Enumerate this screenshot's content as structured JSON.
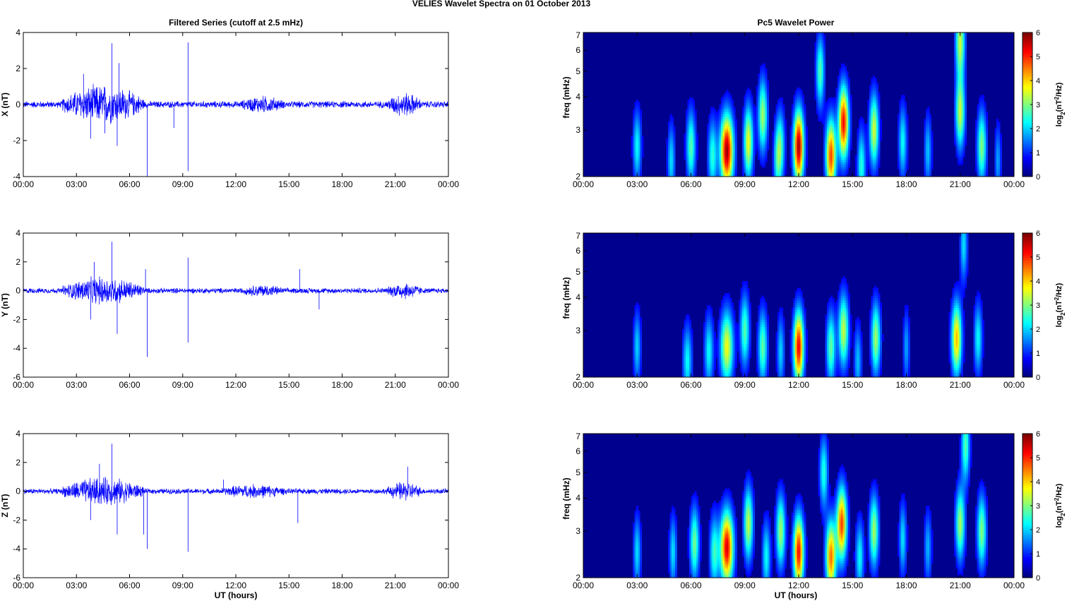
{
  "figure": {
    "title": "VELIES Wavelet Spectra on 01 October   2013",
    "left_title": "Filtered Series (cutoff at 2.5 mHz)",
    "right_title": "Pc5 Wavelet Power",
    "xlabel": "UT (hours)",
    "freq_label": "freq (mHz)",
    "colorbar_label": "log",
    "colorbar_label_sub": "2",
    "colorbar_label_rest": "(nT",
    "colorbar_label_sup": "2",
    "colorbar_label_end": "/Hz)"
  },
  "colors": {
    "series_line": "#0000ff",
    "heatmap_bg": "#00008f"
  },
  "colormap": "jet",
  "chart_data": [
    {
      "type": "line",
      "ylabel": "X (nT)",
      "x_ticks": [
        "00:00",
        "03:00",
        "06:00",
        "09:00",
        "12:00",
        "15:00",
        "18:00",
        "21:00",
        "00:00"
      ],
      "xlim_hours": [
        0,
        24
      ],
      "ylim": [
        -4,
        4
      ],
      "y_ticks": [
        "4",
        "2",
        "0",
        "-2",
        "-4"
      ],
      "baseline_amplitude": 0.15,
      "activity": [
        {
          "start": 2.2,
          "end": 6.8,
          "amp": 0.9
        },
        {
          "start": 20.5,
          "end": 22.5,
          "amp": 0.55
        },
        {
          "start": 12.2,
          "end": 14.8,
          "amp": 0.4
        }
      ],
      "spikes": [
        [
          5.0,
          3.4
        ],
        [
          5.4,
          2.3
        ],
        [
          9.3,
          3.45
        ],
        [
          9.3,
          -3.7
        ],
        [
          7.0,
          -4.0
        ],
        [
          5.3,
          -2.3
        ],
        [
          3.8,
          -1.9
        ],
        [
          3.4,
          1.7
        ],
        [
          8.5,
          -1.3
        ],
        [
          4.6,
          -1.6
        ]
      ]
    },
    {
      "type": "line",
      "ylabel": "Y (nT)",
      "x_ticks": [
        "00:00",
        "03:00",
        "06:00",
        "09:00",
        "12:00",
        "15:00",
        "18:00",
        "21:00",
        "00:00"
      ],
      "xlim_hours": [
        0,
        24
      ],
      "ylim": [
        -6,
        4
      ],
      "y_ticks": [
        "4",
        "2",
        "0",
        "-2",
        "-4",
        "-6"
      ],
      "baseline_amplitude": 0.15,
      "activity": [
        {
          "start": 2.2,
          "end": 6.8,
          "amp": 0.8
        },
        {
          "start": 20.5,
          "end": 22.5,
          "amp": 0.5
        },
        {
          "start": 12.2,
          "end": 14.8,
          "amp": 0.35
        }
      ],
      "spikes": [
        [
          5.0,
          3.4
        ],
        [
          7.0,
          -4.6
        ],
        [
          9.3,
          2.3
        ],
        [
          9.3,
          -3.6
        ],
        [
          5.3,
          -3.0
        ],
        [
          3.8,
          -2.0
        ],
        [
          4.0,
          2.0
        ],
        [
          6.9,
          1.5
        ],
        [
          15.6,
          1.5
        ],
        [
          16.7,
          -1.3
        ]
      ]
    },
    {
      "type": "line",
      "ylabel": "Z (nT)",
      "x_ticks": [
        "00:00",
        "03:00",
        "06:00",
        "09:00",
        "12:00",
        "15:00",
        "18:00",
        "21:00",
        "00:00"
      ],
      "xlim_hours": [
        0,
        24
      ],
      "ylim": [
        -6,
        4
      ],
      "y_ticks": [
        "4",
        "2",
        "0",
        "-2",
        "-4",
        "-6"
      ],
      "baseline_amplitude": 0.15,
      "activity": [
        {
          "start": 2.2,
          "end": 6.8,
          "amp": 0.8
        },
        {
          "start": 20.5,
          "end": 22.5,
          "amp": 0.55
        },
        {
          "start": 11.0,
          "end": 15.0,
          "amp": 0.4
        }
      ],
      "spikes": [
        [
          5.0,
          3.3
        ],
        [
          7.0,
          -4.0
        ],
        [
          9.3,
          -4.2
        ],
        [
          5.3,
          -3.0
        ],
        [
          6.8,
          -3.0
        ],
        [
          3.8,
          -2.0
        ],
        [
          15.5,
          -2.2
        ],
        [
          4.3,
          1.9
        ],
        [
          21.7,
          1.7
        ],
        [
          11.3,
          0.8
        ]
      ]
    },
    {
      "type": "heatmap",
      "ylabel": "freq (mHz)",
      "x_ticks": [
        "00:00",
        "03:00",
        "06:00",
        "09:00",
        "12:00",
        "15:00",
        "18:00",
        "21:00",
        "00:00"
      ],
      "xlim_hours": [
        0,
        24
      ],
      "y_scale": "log",
      "ylim": [
        2,
        7
      ],
      "y_ticks": [
        "7",
        "6",
        "5",
        "4",
        "3",
        "2"
      ],
      "colorbar": {
        "range": [
          0,
          6
        ],
        "ticks": [
          "6",
          "5",
          "4",
          "3",
          "2",
          "1",
          "0"
        ]
      },
      "blobs": [
        {
          "t": 8.0,
          "f": 2.5,
          "p": 5.8,
          "w": 0.28
        },
        {
          "t": 12.0,
          "f": 2.6,
          "p": 5.8,
          "w": 0.22
        },
        {
          "t": 14.5,
          "f": 3.2,
          "p": 5.2,
          "w": 0.22
        },
        {
          "t": 13.8,
          "f": 2.4,
          "p": 4.8,
          "w": 0.22
        },
        {
          "t": 9.2,
          "f": 2.7,
          "p": 3.5,
          "w": 0.2
        },
        {
          "t": 10.0,
          "f": 3.4,
          "p": 3.0,
          "w": 0.2
        },
        {
          "t": 16.2,
          "f": 3.0,
          "p": 3.3,
          "w": 0.2
        },
        {
          "t": 6.0,
          "f": 2.6,
          "p": 2.5,
          "w": 0.2
        },
        {
          "t": 7.2,
          "f": 2.4,
          "p": 2.2,
          "w": 0.2
        },
        {
          "t": 11.0,
          "f": 2.6,
          "p": 2.2,
          "w": 0.18
        },
        {
          "t": 21.0,
          "f": 3.5,
          "p": 3.2,
          "w": 0.2
        },
        {
          "t": 22.2,
          "f": 2.6,
          "p": 2.8,
          "w": 0.2
        },
        {
          "t": 3.0,
          "f": 2.6,
          "p": 2.0,
          "w": 0.18
        },
        {
          "t": 4.9,
          "f": 2.3,
          "p": 1.8,
          "w": 0.16
        },
        {
          "t": 17.8,
          "f": 2.7,
          "p": 2.0,
          "w": 0.18
        },
        {
          "t": 19.2,
          "f": 2.5,
          "p": 1.6,
          "w": 0.16
        },
        {
          "t": 15.5,
          "f": 2.2,
          "p": 2.2,
          "w": 0.18
        },
        {
          "t": 13.2,
          "f": 5.0,
          "p": 2.5,
          "w": 0.18
        },
        {
          "t": 21.0,
          "f": 6.5,
          "p": 3.2,
          "w": 0.2
        },
        {
          "t": 10.8,
          "f": 2.3,
          "p": 1.8,
          "w": 0.16
        },
        {
          "t": 23.1,
          "f": 2.3,
          "p": 1.4,
          "w": 0.14
        }
      ]
    },
    {
      "type": "heatmap",
      "ylabel": "freq (mHz)",
      "x_ticks": [
        "00:00",
        "03:00",
        "06:00",
        "09:00",
        "12:00",
        "15:00",
        "18:00",
        "21:00",
        "00:00"
      ],
      "xlim_hours": [
        0,
        24
      ],
      "y_scale": "log",
      "ylim": [
        2,
        7
      ],
      "y_ticks": [
        "7",
        "6",
        "5",
        "4",
        "3",
        "2"
      ],
      "colorbar": {
        "range": [
          0,
          6
        ],
        "ticks": [
          "6",
          "5",
          "4",
          "3",
          "2",
          "1",
          "0"
        ]
      },
      "blobs": [
        {
          "t": 12.0,
          "f": 2.6,
          "p": 5.3,
          "w": 0.22
        },
        {
          "t": 8.0,
          "f": 2.6,
          "p": 3.5,
          "w": 0.28
        },
        {
          "t": 20.8,
          "f": 2.8,
          "p": 4.0,
          "w": 0.22
        },
        {
          "t": 14.5,
          "f": 3.0,
          "p": 3.2,
          "w": 0.22
        },
        {
          "t": 16.3,
          "f": 2.8,
          "p": 3.0,
          "w": 0.2
        },
        {
          "t": 13.8,
          "f": 2.6,
          "p": 2.6,
          "w": 0.2
        },
        {
          "t": 9.0,
          "f": 3.0,
          "p": 2.5,
          "w": 0.2
        },
        {
          "t": 10.0,
          "f": 2.6,
          "p": 2.6,
          "w": 0.2
        },
        {
          "t": 5.8,
          "f": 2.3,
          "p": 2.0,
          "w": 0.2
        },
        {
          "t": 7.0,
          "f": 2.5,
          "p": 2.0,
          "w": 0.2
        },
        {
          "t": 22.0,
          "f": 2.8,
          "p": 2.0,
          "w": 0.18
        },
        {
          "t": 3.0,
          "f": 2.6,
          "p": 1.7,
          "w": 0.16
        },
        {
          "t": 11.0,
          "f": 2.5,
          "p": 1.7,
          "w": 0.16
        },
        {
          "t": 18.0,
          "f": 2.6,
          "p": 1.4,
          "w": 0.14
        },
        {
          "t": 15.3,
          "f": 2.3,
          "p": 1.6,
          "w": 0.16
        },
        {
          "t": 21.2,
          "f": 6.3,
          "p": 1.8,
          "w": 0.16
        }
      ]
    },
    {
      "type": "heatmap",
      "ylabel": "freq (mHz)",
      "x_ticks": [
        "00:00",
        "03:00",
        "06:00",
        "09:00",
        "12:00",
        "15:00",
        "18:00",
        "21:00",
        "00:00"
      ],
      "xlim_hours": [
        0,
        24
      ],
      "y_scale": "log",
      "ylim": [
        2,
        7
      ],
      "y_ticks": [
        "7",
        "6",
        "5",
        "4",
        "3",
        "2"
      ],
      "colorbar": {
        "range": [
          0,
          6
        ],
        "ticks": [
          "6",
          "5",
          "4",
          "3",
          "2",
          "1",
          "0"
        ]
      },
      "blobs": [
        {
          "t": 8.0,
          "f": 2.6,
          "p": 5.4,
          "w": 0.28
        },
        {
          "t": 12.0,
          "f": 2.5,
          "p": 5.2,
          "w": 0.22
        },
        {
          "t": 14.4,
          "f": 3.2,
          "p": 4.8,
          "w": 0.22
        },
        {
          "t": 13.8,
          "f": 2.4,
          "p": 4.5,
          "w": 0.22
        },
        {
          "t": 9.2,
          "f": 3.2,
          "p": 3.2,
          "w": 0.2
        },
        {
          "t": 11.0,
          "f": 3.0,
          "p": 3.0,
          "w": 0.2
        },
        {
          "t": 6.2,
          "f": 2.7,
          "p": 2.7,
          "w": 0.2
        },
        {
          "t": 7.3,
          "f": 2.5,
          "p": 2.3,
          "w": 0.2
        },
        {
          "t": 16.2,
          "f": 3.0,
          "p": 3.0,
          "w": 0.2
        },
        {
          "t": 21.0,
          "f": 3.2,
          "p": 3.0,
          "w": 0.2
        },
        {
          "t": 22.2,
          "f": 3.0,
          "p": 2.8,
          "w": 0.2
        },
        {
          "t": 3.0,
          "f": 2.5,
          "p": 1.8,
          "w": 0.16
        },
        {
          "t": 5.0,
          "f": 2.5,
          "p": 1.8,
          "w": 0.16
        },
        {
          "t": 10.2,
          "f": 2.4,
          "p": 2.0,
          "w": 0.18
        },
        {
          "t": 15.4,
          "f": 2.4,
          "p": 2.0,
          "w": 0.18
        },
        {
          "t": 17.8,
          "f": 2.8,
          "p": 1.8,
          "w": 0.16
        },
        {
          "t": 19.2,
          "f": 2.6,
          "p": 1.5,
          "w": 0.16
        },
        {
          "t": 13.4,
          "f": 5.0,
          "p": 2.2,
          "w": 0.18
        },
        {
          "t": 21.3,
          "f": 6.3,
          "p": 2.5,
          "w": 0.18
        }
      ]
    }
  ]
}
